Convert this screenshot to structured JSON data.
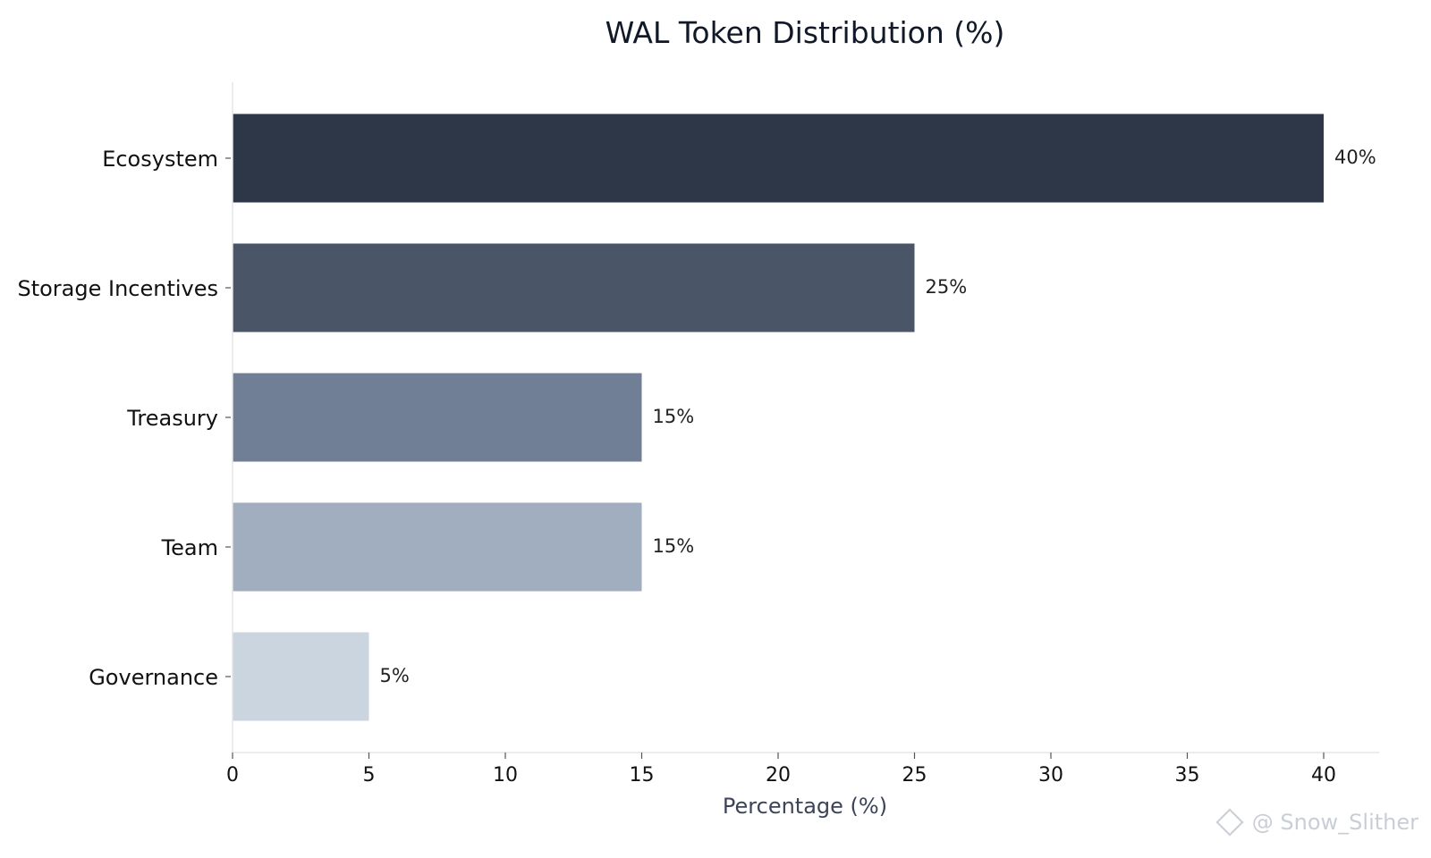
{
  "chart_data": {
    "type": "bar",
    "orientation": "horizontal",
    "title": "WAL Token Distribution (%)",
    "xlabel": "Percentage (%)",
    "ylabel": "",
    "categories": [
      "Ecosystem",
      "Storage Incentives",
      "Treasury",
      "Team",
      "Governance"
    ],
    "values": [
      40,
      25,
      15,
      15,
      5
    ],
    "value_labels": [
      "40%",
      "25%",
      "15%",
      "15%",
      "5%"
    ],
    "colors": [
      "#2e3748",
      "#4a5568",
      "#717f96",
      "#a1aec0",
      "#cbd5e0"
    ],
    "xlim": [
      0,
      42
    ],
    "xticks": [
      0,
      5,
      10,
      15,
      20,
      25,
      30,
      35,
      40
    ],
    "grid": false,
    "legend": "none"
  },
  "watermark": {
    "text": "@ Snow_Slither",
    "icon": "binance-logo-icon"
  }
}
